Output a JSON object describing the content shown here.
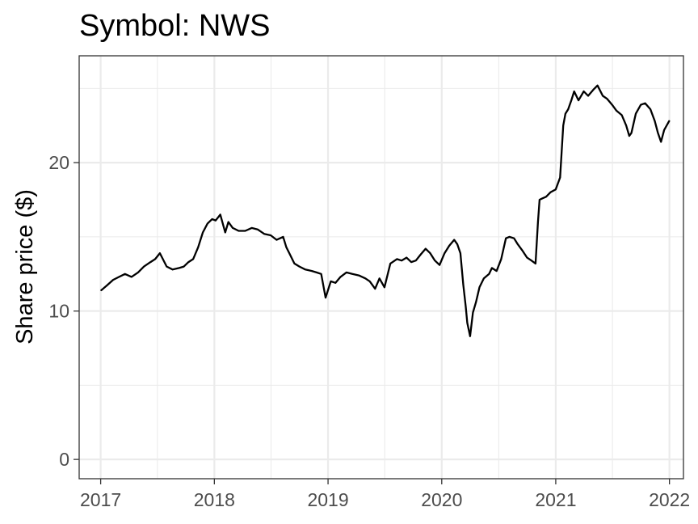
{
  "chart_data": {
    "type": "line",
    "title": "Symbol: NWS",
    "xlabel": "",
    "ylabel": "Share price ($)",
    "x_ticks": [
      "2017",
      "2018",
      "2019",
      "2020",
      "2021",
      "2022"
    ],
    "y_ticks": [
      "0",
      "10",
      "20"
    ],
    "xlim": [
      "2016-10-24",
      "2022-02-15"
    ],
    "ylim": [
      -1.3,
      27.2
    ],
    "grid": true,
    "legend": "none",
    "series": [
      {
        "color": "#000000",
        "x": [
          "2017-01-03",
          "2017-01-20",
          "2017-02-10",
          "2017-03-01",
          "2017-03-20",
          "2017-04-10",
          "2017-05-01",
          "2017-05-20",
          "2017-06-10",
          "2017-06-25",
          "2017-07-10",
          "2017-08-01",
          "2017-08-20",
          "2017-09-10",
          "2017-09-25",
          "2017-10-10",
          "2017-10-25",
          "2017-11-10",
          "2017-11-25",
          "2017-12-10",
          "2017-12-25",
          "2018-01-05",
          "2018-01-20",
          "2018-02-05",
          "2018-02-15",
          "2018-03-01",
          "2018-03-20",
          "2018-04-10",
          "2018-05-01",
          "2018-05-20",
          "2018-06-10",
          "2018-07-01",
          "2018-07-20",
          "2018-08-10",
          "2018-08-20",
          "2018-09-01",
          "2018-09-15",
          "2018-10-01",
          "2018-10-20",
          "2018-11-10",
          "2018-11-25",
          "2018-12-10",
          "2018-12-24",
          "2019-01-10",
          "2019-01-25",
          "2019-02-10",
          "2019-03-01",
          "2019-03-20",
          "2019-04-10",
          "2019-05-01",
          "2019-05-15",
          "2019-06-01",
          "2019-06-15",
          "2019-07-01",
          "2019-07-20",
          "2019-08-10",
          "2019-08-25",
          "2019-09-10",
          "2019-09-25",
          "2019-10-10",
          "2019-10-25",
          "2019-11-10",
          "2019-11-25",
          "2019-12-10",
          "2019-12-25",
          "2020-01-10",
          "2020-01-25",
          "2020-02-10",
          "2020-02-20",
          "2020-03-01",
          "2020-03-10",
          "2020-03-18",
          "2020-03-23",
          "2020-04-01",
          "2020-04-10",
          "2020-04-20",
          "2020-05-01",
          "2020-05-15",
          "2020-06-01",
          "2020-06-10",
          "2020-06-25",
          "2020-07-10",
          "2020-07-25",
          "2020-08-05",
          "2020-08-20",
          "2020-09-01",
          "2020-09-15",
          "2020-10-01",
          "2020-10-15",
          "2020-10-28",
          "2020-11-05",
          "2020-11-10",
          "2020-11-20",
          "2020-12-01",
          "2020-12-15",
          "2021-01-01",
          "2021-01-15",
          "2021-01-25",
          "2021-02-01",
          "2021-02-10",
          "2021-02-20",
          "2021-03-01",
          "2021-03-15",
          "2021-04-01",
          "2021-04-15",
          "2021-05-01",
          "2021-05-15",
          "2021-06-01",
          "2021-06-15",
          "2021-07-01",
          "2021-07-15",
          "2021-08-01",
          "2021-08-15",
          "2021-08-25",
          "2021-09-01",
          "2021-09-15",
          "2021-10-01",
          "2021-10-15",
          "2021-11-01",
          "2021-11-15",
          "2021-11-25",
          "2021-12-05",
          "2021-12-15",
          "2021-12-31"
        ],
        "y": [
          11.4,
          11.7,
          12.1,
          12.3,
          12.5,
          12.3,
          12.6,
          13.0,
          13.3,
          13.5,
          13.9,
          13.0,
          12.8,
          12.9,
          13.0,
          13.3,
          13.5,
          14.3,
          15.3,
          15.9,
          16.2,
          16.1,
          16.5,
          15.3,
          16.0,
          15.6,
          15.4,
          15.4,
          15.6,
          15.5,
          15.2,
          15.1,
          14.8,
          15.0,
          14.3,
          13.8,
          13.2,
          13.0,
          12.8,
          12.7,
          12.6,
          12.5,
          10.9,
          12.0,
          11.9,
          12.3,
          12.6,
          12.5,
          12.4,
          12.2,
          12.0,
          11.5,
          12.2,
          11.6,
          13.2,
          13.5,
          13.4,
          13.6,
          13.3,
          13.4,
          13.8,
          14.2,
          13.9,
          13.4,
          13.1,
          13.9,
          14.4,
          14.8,
          14.5,
          13.9,
          11.8,
          10.3,
          9.2,
          8.3,
          9.9,
          10.6,
          11.6,
          12.2,
          12.5,
          12.9,
          12.7,
          13.5,
          14.9,
          15.0,
          14.9,
          14.5,
          14.1,
          13.6,
          13.4,
          13.2,
          16.0,
          17.5,
          17.6,
          17.7,
          18.0,
          18.2,
          19.0,
          22.5,
          23.3,
          23.6,
          24.2,
          24.8,
          24.2,
          24.8,
          24.5,
          24.9,
          25.2,
          24.5,
          24.3,
          23.9,
          23.5,
          23.2,
          22.5,
          21.8,
          22.0,
          23.3,
          23.9,
          24.0,
          23.6,
          22.8,
          22.0,
          21.4,
          22.2,
          22.8
        ]
      }
    ]
  }
}
